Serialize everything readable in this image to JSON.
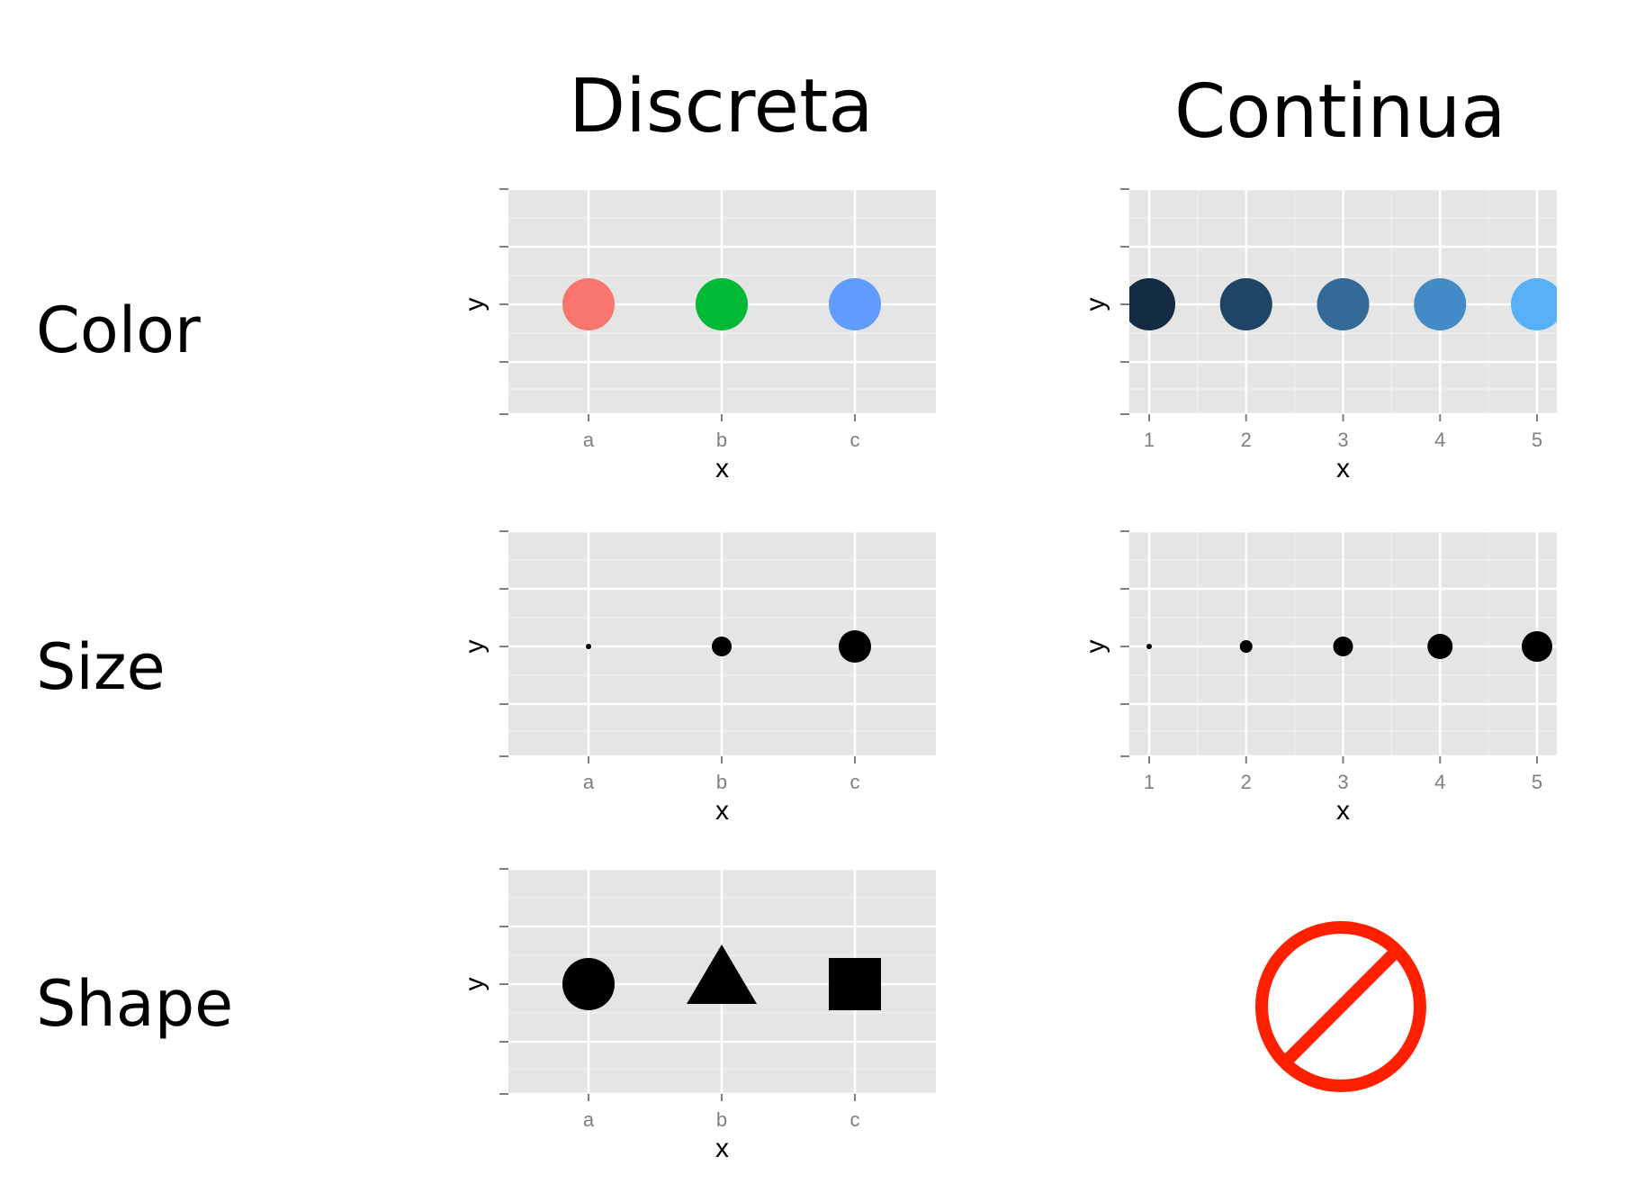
{
  "columns": {
    "discrete": "Discreta",
    "continuous": "Continua"
  },
  "rows": {
    "color": "Color",
    "size": "Size",
    "shape": "Shape"
  },
  "chart_data": [
    {
      "id": "color-discrete",
      "type": "scatter",
      "xlabel": "x",
      "ylabel": "y",
      "categories": [
        "a",
        "b",
        "c"
      ],
      "y": [
        0,
        0,
        0
      ],
      "colors": [
        "#F8766D",
        "#00BA38",
        "#619CFF"
      ],
      "sizes": [
        1,
        1,
        1
      ],
      "shapes": [
        "circle",
        "circle",
        "circle"
      ],
      "grid": true
    },
    {
      "id": "color-continuous",
      "type": "scatter",
      "xlabel": "x",
      "ylabel": "y",
      "x": [
        1,
        2,
        3,
        4,
        5
      ],
      "xticks": [
        "1",
        "2",
        "3",
        "4",
        "5"
      ],
      "y": [
        0,
        0,
        0,
        0,
        0
      ],
      "colors": [
        "#132B43",
        "#1F4566",
        "#336A98",
        "#438BC7",
        "#56B1F7"
      ],
      "sizes": [
        1,
        1,
        1,
        1,
        1
      ],
      "shapes": [
        "circle",
        "circle",
        "circle",
        "circle",
        "circle"
      ],
      "grid": true
    },
    {
      "id": "size-discrete",
      "type": "scatter",
      "xlabel": "x",
      "ylabel": "y",
      "categories": [
        "a",
        "b",
        "c"
      ],
      "y": [
        0,
        0,
        0
      ],
      "colors": [
        "#000000",
        "#000000",
        "#000000"
      ],
      "sizes": [
        1,
        2,
        3
      ],
      "shapes": [
        "circle",
        "circle",
        "circle"
      ],
      "grid": true
    },
    {
      "id": "size-continuous",
      "type": "scatter",
      "xlabel": "x",
      "ylabel": "y",
      "x": [
        1,
        2,
        3,
        4,
        5
      ],
      "xticks": [
        "1",
        "2",
        "3",
        "4",
        "5"
      ],
      "y": [
        0,
        0,
        0,
        0,
        0
      ],
      "colors": [
        "#000000",
        "#000000",
        "#000000",
        "#000000",
        "#000000"
      ],
      "sizes": [
        1,
        2,
        3,
        4,
        5
      ],
      "shapes": [
        "circle",
        "circle",
        "circle",
        "circle",
        "circle"
      ],
      "grid": true
    },
    {
      "id": "shape-discrete",
      "type": "scatter",
      "xlabel": "x",
      "ylabel": "y",
      "categories": [
        "a",
        "b",
        "c"
      ],
      "y": [
        0,
        0,
        0
      ],
      "colors": [
        "#000000",
        "#000000",
        "#000000"
      ],
      "sizes": [
        1,
        1,
        1
      ],
      "shapes": [
        "circle",
        "triangle",
        "square"
      ],
      "grid": true
    }
  ],
  "not_applicable": {
    "icon": "prohibited-icon",
    "color": "#FF2000"
  }
}
